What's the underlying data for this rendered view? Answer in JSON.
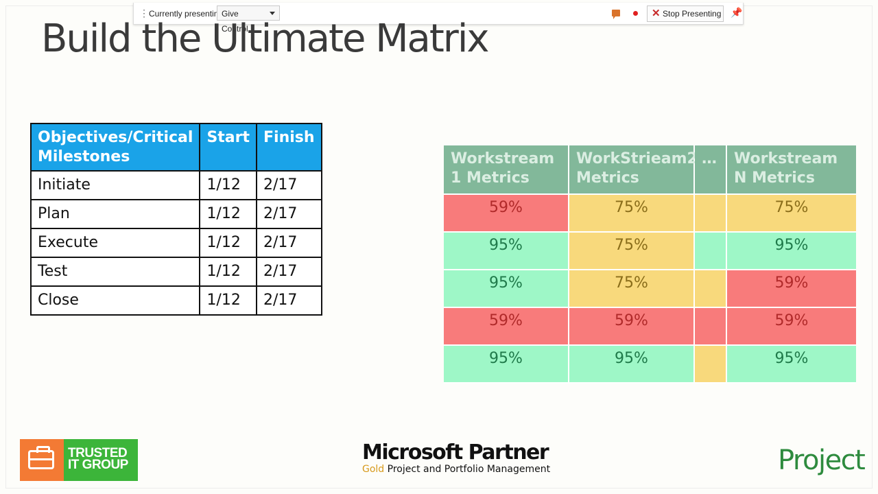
{
  "toolbar": {
    "status_label": "Currently presenting",
    "give_control_label": "Give Control",
    "stop_label": "Stop Presenting"
  },
  "slide": {
    "title": "Build the Ultimate Matrix"
  },
  "milestones_table": {
    "headers": [
      "Objectives/Critical Milestones",
      "Start",
      "Finish"
    ],
    "rows": [
      {
        "milestone": "Initiate",
        "start": "1/12",
        "finish": "2/17"
      },
      {
        "milestone": "Plan",
        "start": "1/12",
        "finish": "2/17"
      },
      {
        "milestone": "Execute",
        "start": "1/12",
        "finish": "2/17"
      },
      {
        "milestone": "Test",
        "start": "1/12",
        "finish": "2/17"
      },
      {
        "milestone": "Close",
        "start": "1/12",
        "finish": "2/17"
      }
    ]
  },
  "metrics_table": {
    "headers": [
      "Workstream 1 Metrics",
      "WorkStrieam2 Metrics",
      "…",
      "Workstream N Metrics"
    ],
    "colors": {
      "red": "#f87b7b",
      "yellow": "#f8d97c",
      "green": "#9ef7c7",
      "header": "#82b89a"
    },
    "rows": [
      [
        {
          "value": "59%",
          "status": "red"
        },
        {
          "value": "75%",
          "status": "yellow"
        },
        {
          "value": "",
          "status": "yellow"
        },
        {
          "value": "75%",
          "status": "yellow"
        }
      ],
      [
        {
          "value": "95%",
          "status": "green"
        },
        {
          "value": "75%",
          "status": "yellow"
        },
        {
          "value": "",
          "status": "green"
        },
        {
          "value": "95%",
          "status": "green"
        }
      ],
      [
        {
          "value": "95%",
          "status": "green"
        },
        {
          "value": "75%",
          "status": "yellow"
        },
        {
          "value": "",
          "status": "yellow"
        },
        {
          "value": "59%",
          "status": "red"
        }
      ],
      [
        {
          "value": "59%",
          "status": "red"
        },
        {
          "value": "59%",
          "status": "red"
        },
        {
          "value": "",
          "status": "red"
        },
        {
          "value": "59%",
          "status": "red"
        }
      ],
      [
        {
          "value": "95%",
          "status": "green"
        },
        {
          "value": "95%",
          "status": "green"
        },
        {
          "value": "",
          "status": "yellow"
        },
        {
          "value": "95%",
          "status": "green"
        }
      ]
    ]
  },
  "footer": {
    "trusted_logo_text": "TRUSTED IT GROUP",
    "partner_title": "Microsoft Partner",
    "partner_tier": "Gold",
    "partner_competency": "Project and Portfolio Management",
    "product_logo": "Project"
  }
}
